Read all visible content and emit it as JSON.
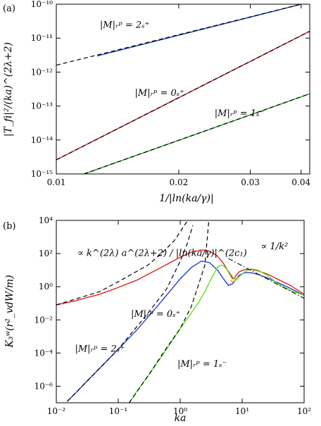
{
  "chart_data": [
    {
      "panel_label": "(a)",
      "type": "line",
      "xlabel": "1/|ln(ka/γ)|",
      "ylabel": "|T_fi|²/(ka)^(2λ+2)",
      "x_scale": "log",
      "y_scale": "log",
      "xlim": [
        0.01,
        0.042
      ],
      "ylim": [
        1e-15,
        1e-10
      ],
      "x_ticks": [
        {
          "value": 0.01,
          "label": "0.01"
        },
        {
          "value": 0.02,
          "label": "0.02"
        },
        {
          "value": 0.03,
          "label": "0.03"
        },
        {
          "value": 0.04,
          "label": "0.04"
        }
      ],
      "y_ticks": [
        {
          "value": 1e-15,
          "label": "10⁻¹⁵"
        },
        {
          "value": 1e-14,
          "label": "10⁻¹⁴"
        },
        {
          "value": 1e-13,
          "label": "10⁻¹³"
        },
        {
          "value": 1e-12,
          "label": "10⁻¹²"
        },
        {
          "value": 1e-11,
          "label": "10⁻¹¹"
        },
        {
          "value": 1e-10,
          "label": "10⁻¹⁰"
        }
      ],
      "series": [
        {
          "color": "#1a3bb8",
          "x": [
            0.0126,
            0.04
          ],
          "y": [
            3e-12,
            1e-10
          ]
        },
        {
          "color": "#cc1f1f",
          "x": [
            0.01,
            0.042
          ],
          "y": [
            2.6e-15,
            1.6e-11
          ]
        },
        {
          "color": "#1fa81f",
          "x": [
            0.0117,
            0.042
          ],
          "y": [
            1e-15,
            2.3e-13
          ]
        }
      ],
      "dashed_series": [
        {
          "x": [
            0.01,
            0.04
          ],
          "y": [
            1.6e-12,
            1e-10
          ]
        },
        {
          "x": [
            0.01,
            0.042
          ],
          "y": [
            2.6e-15,
            1.6e-11
          ]
        },
        {
          "x": [
            0.0117,
            0.042
          ],
          "y": [
            1e-15,
            2.3e-13
          ]
        }
      ],
      "annotations": [
        {
          "text": "|M|ᵣᵖ = 2ₛ⁺",
          "x": 0.0128,
          "y": 2e-11
        },
        {
          "text": "|M|ᵣᵖ = 0ₛ⁺",
          "x": 0.0156,
          "y": 2e-13
        },
        {
          "text": "|M|ᵣᵖ = 1ₛ⁻",
          "x": 0.0245,
          "y": 5e-14
        }
      ]
    },
    {
      "panel_label": "(b)",
      "type": "line",
      "xlabel": "ka",
      "ylabel": "K₃ʷ(r²_vdW/m)",
      "x_scale": "log",
      "y_scale": "log",
      "xlim": [
        0.01,
        100
      ],
      "ylim": [
        1e-07,
        10000.0
      ],
      "x_ticks": [
        {
          "value": 0.01,
          "label": "10⁻²"
        },
        {
          "value": 0.1,
          "label": "10⁻¹"
        },
        {
          "value": 1,
          "label": "10⁰"
        },
        {
          "value": 10,
          "label": "10¹"
        },
        {
          "value": 100,
          "label": "10²"
        }
      ],
      "y_ticks": [
        {
          "value": 1e-06,
          "label": "10⁻⁶"
        },
        {
          "value": 0.0001,
          "label": "10⁻⁴"
        },
        {
          "value": 0.01,
          "label": "10⁻²"
        },
        {
          "value": 1,
          "label": "10⁰"
        },
        {
          "value": 100,
          "label": "10²"
        },
        {
          "value": 10000,
          "label": "10⁴"
        }
      ],
      "series": [
        {
          "color": "#e02020",
          "x": [
            0.01,
            0.02,
            0.05,
            0.1,
            0.2,
            0.5,
            1,
            1.5,
            2.2,
            3,
            4,
            5,
            6,
            7,
            7.5,
            8,
            9,
            11,
            14,
            18,
            25,
            40,
            60,
            100
          ],
          "y": [
            0.08,
            0.14,
            0.35,
            0.9,
            2.5,
            15,
            60,
            120,
            165,
            140,
            70,
            25,
            8,
            3,
            3.2,
            5,
            8,
            11,
            11,
            9,
            6,
            2.5,
            1.2,
            0.35
          ]
        },
        {
          "color": "#2040d0",
          "x": [
            0.015,
            0.02,
            0.03,
            0.05,
            0.1,
            0.2,
            0.4,
            0.7,
            1,
            1.5,
            2.2,
            3,
            4,
            5,
            6,
            7,
            8,
            9,
            11,
            14,
            18,
            25,
            40,
            60,
            100
          ],
          "y": [
            1.2e-07,
            3.5e-07,
            1.7e-06,
            1.2e-05,
            0.00017,
            0.0025,
            0.05,
            0.6,
            3,
            14,
            35,
            28,
            10,
            3,
            1.2,
            1.5,
            3,
            5,
            7,
            7,
            5.5,
            3.5,
            1.6,
            0.8,
            0.3
          ]
        },
        {
          "color": "#60e020",
          "x": [
            0.15,
            0.2,
            0.3,
            0.5,
            0.7,
            1,
            1.5,
            2,
            2.5,
            3,
            3.5,
            4,
            4.5,
            5,
            6,
            7,
            8,
            9,
            11,
            14,
            18,
            25,
            40,
            60,
            100
          ],
          "y": [
            1e-07,
            5e-07,
            4e-06,
            6e-05,
            0.0004,
            0.003,
            0.025,
            0.12,
            0.5,
            2,
            6,
            15,
            20,
            18,
            9,
            4,
            2.5,
            4,
            8,
            12,
            10,
            5,
            1.3,
            0.6,
            0.3
          ]
        },
        {
          "color": "#f0a020",
          "x": [
            6.5,
            7,
            7.5,
            8,
            8.5
          ],
          "y": [
            2.5,
            2.0,
            2.2,
            3,
            4
          ]
        }
      ],
      "dashed_series": [
        {
          "x": [
            0.01,
            0.05,
            0.1,
            0.3,
            0.5,
            0.8,
            1,
            1.2,
            1.4
          ],
          "y": [
            0.08,
            0.5,
            2,
            20,
            100,
            600,
            2000,
            6000,
            12000
          ]
        },
        {
          "x": [
            0.015,
            0.05,
            0.1,
            0.3,
            0.6,
            1,
            1.3,
            1.6
          ],
          "y": [
            1.2e-07,
            1.2e-05,
            0.00017,
            0.025,
            0.7,
            35,
            400,
            5000
          ]
        },
        {
          "x": [
            0.15,
            0.3,
            0.6,
            1,
            1.5,
            2,
            2.5,
            2.9
          ],
          "y": [
            1e-07,
            4e-06,
            0.0002,
            0.003,
            0.06,
            1.5,
            20,
            10000
          ]
        }
      ],
      "dashdot_series": [
        {
          "x": [
            6,
            100
          ],
          "y": [
            50,
            0.2
          ]
        }
      ],
      "annotations": [
        {
          "text": "∝ k^(2λ) a^(2λ+2) / |ln(ka/γ)|^(2c₁)",
          "x": 0.022,
          "y": 70
        },
        {
          "text": "∝ 1/k²",
          "x": 20,
          "y": 180
        },
        {
          "text": "|M|ᵣᵖ = 0ₛ⁺",
          "x": 0.16,
          "y": 0.015
        },
        {
          "text": "|M|ᵣᵖ = 2ₛ⁺",
          "x": 0.02,
          "y": 0.00012
        },
        {
          "text": "|M|ᵣᵖ = 1ₛ⁻",
          "x": 0.9,
          "y": 1.5e-05
        }
      ]
    }
  ]
}
